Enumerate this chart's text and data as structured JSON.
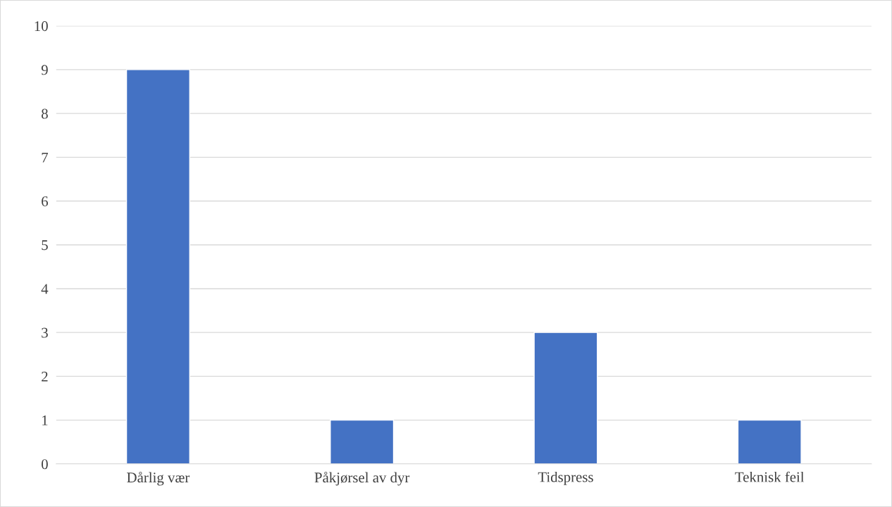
{
  "chart_data": {
    "type": "bar",
    "categories": [
      "Dårlig vær",
      "Påkjørsel av dyr",
      "Tidspress",
      "Teknisk feil"
    ],
    "values": [
      9,
      1,
      3,
      1
    ],
    "color": "#4472c4",
    "ylim": [
      0,
      10
    ],
    "yticks": [
      0,
      1,
      2,
      3,
      4,
      5,
      6,
      7,
      8,
      9,
      10
    ],
    "grid": "y",
    "legend": false
  }
}
